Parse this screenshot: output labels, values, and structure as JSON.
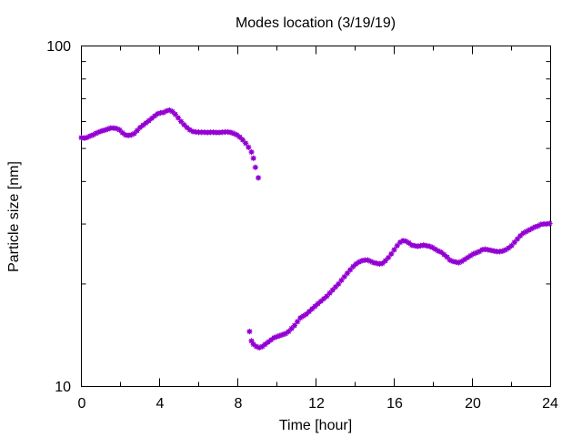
{
  "chart_data": {
    "type": "scatter",
    "title": "Modes location (3/19/19)",
    "xlabel": "Time [hour]",
    "ylabel": "Particle size [nm]",
    "x_ticks": [
      "0",
      "4",
      "8",
      "12",
      "16",
      "20",
      "24"
    ],
    "y_ticks": [
      "10",
      "100"
    ],
    "xlim": [
      0,
      24
    ],
    "ylim": [
      10,
      100
    ],
    "y_scale": "log",
    "grid": false,
    "legend": "none",
    "marker_color": "#9400d3",
    "series": [
      {
        "points": [
          [
            0.0,
            53.8
          ],
          [
            0.15,
            53.6
          ],
          [
            0.3,
            53.9
          ],
          [
            0.45,
            54.4
          ],
          [
            0.6,
            54.8
          ],
          [
            0.75,
            55.4
          ],
          [
            0.9,
            55.9
          ],
          [
            1.05,
            56.3
          ],
          [
            1.2,
            56.6
          ],
          [
            1.35,
            57.0
          ],
          [
            1.5,
            57.4
          ],
          [
            1.65,
            57.4
          ],
          [
            1.8,
            57.2
          ],
          [
            1.95,
            56.7
          ],
          [
            2.1,
            55.6
          ],
          [
            2.25,
            54.8
          ],
          [
            2.4,
            54.6
          ],
          [
            2.55,
            54.8
          ],
          [
            2.7,
            55.3
          ],
          [
            2.85,
            56.4
          ],
          [
            3.0,
            57.6
          ],
          [
            3.15,
            58.5
          ],
          [
            3.3,
            59.4
          ],
          [
            3.45,
            60.3
          ],
          [
            3.6,
            61.3
          ],
          [
            3.75,
            62.3
          ],
          [
            3.9,
            63.2
          ],
          [
            4.05,
            63.6
          ],
          [
            4.2,
            63.8
          ],
          [
            4.35,
            64.4
          ],
          [
            4.5,
            64.8
          ],
          [
            4.65,
            64.2
          ],
          [
            4.8,
            63.0
          ],
          [
            4.95,
            61.5
          ],
          [
            5.1,
            60.0
          ],
          [
            5.25,
            58.7
          ],
          [
            5.4,
            57.6
          ],
          [
            5.55,
            56.7
          ],
          [
            5.7,
            56.1
          ],
          [
            5.85,
            55.9
          ],
          [
            6.0,
            55.8
          ],
          [
            6.15,
            55.8
          ],
          [
            6.3,
            55.8
          ],
          [
            6.45,
            55.7
          ],
          [
            6.6,
            55.8
          ],
          [
            6.75,
            55.8
          ],
          [
            6.9,
            55.7
          ],
          [
            7.05,
            55.7
          ],
          [
            7.2,
            55.8
          ],
          [
            7.35,
            55.9
          ],
          [
            7.5,
            55.9
          ],
          [
            7.65,
            55.7
          ],
          [
            7.8,
            55.3
          ],
          [
            7.95,
            54.8
          ],
          [
            8.1,
            54.0
          ],
          [
            8.25,
            53.0
          ],
          [
            8.4,
            51.8
          ],
          [
            8.55,
            50.4
          ],
          [
            8.7,
            48.8
          ],
          [
            8.8,
            46.8
          ],
          [
            8.9,
            44.0
          ],
          [
            9.05,
            41.0
          ],
          [
            8.6,
            14.5
          ],
          [
            8.7,
            13.6
          ],
          [
            8.8,
            13.3
          ],
          [
            8.95,
            13.1
          ],
          [
            9.1,
            13.0
          ],
          [
            9.25,
            13.1
          ],
          [
            9.4,
            13.3
          ],
          [
            9.55,
            13.5
          ],
          [
            9.7,
            13.7
          ],
          [
            9.85,
            13.9
          ],
          [
            10.0,
            14.0
          ],
          [
            10.15,
            14.1
          ],
          [
            10.3,
            14.2
          ],
          [
            10.45,
            14.3
          ],
          [
            10.6,
            14.5
          ],
          [
            10.75,
            14.8
          ],
          [
            10.9,
            15.1
          ],
          [
            11.05,
            15.5
          ],
          [
            11.2,
            15.9
          ],
          [
            11.35,
            16.1
          ],
          [
            11.5,
            16.3
          ],
          [
            11.65,
            16.6
          ],
          [
            11.8,
            16.9
          ],
          [
            11.95,
            17.2
          ],
          [
            12.1,
            17.5
          ],
          [
            12.25,
            17.8
          ],
          [
            12.4,
            18.1
          ],
          [
            12.55,
            18.4
          ],
          [
            12.7,
            18.8
          ],
          [
            12.85,
            19.2
          ],
          [
            13.0,
            19.6
          ],
          [
            13.15,
            20.0
          ],
          [
            13.3,
            20.5
          ],
          [
            13.45,
            21.0
          ],
          [
            13.6,
            21.5
          ],
          [
            13.75,
            22.0
          ],
          [
            13.9,
            22.5
          ],
          [
            14.05,
            22.9
          ],
          [
            14.2,
            23.2
          ],
          [
            14.35,
            23.4
          ],
          [
            14.5,
            23.5
          ],
          [
            14.65,
            23.5
          ],
          [
            14.8,
            23.3
          ],
          [
            14.95,
            23.1
          ],
          [
            15.1,
            23.0
          ],
          [
            15.25,
            22.9
          ],
          [
            15.4,
            23.0
          ],
          [
            15.55,
            23.4
          ],
          [
            15.7,
            23.9
          ],
          [
            15.85,
            24.5
          ],
          [
            16.0,
            25.2
          ],
          [
            16.15,
            25.9
          ],
          [
            16.3,
            26.5
          ],
          [
            16.45,
            26.8
          ],
          [
            16.6,
            26.7
          ],
          [
            16.75,
            26.4
          ],
          [
            16.9,
            26.0
          ],
          [
            17.05,
            25.9
          ],
          [
            17.2,
            25.8
          ],
          [
            17.35,
            25.9
          ],
          [
            17.5,
            26.0
          ],
          [
            17.65,
            25.9
          ],
          [
            17.8,
            25.8
          ],
          [
            17.95,
            25.6
          ],
          [
            18.1,
            25.3
          ],
          [
            18.25,
            25.0
          ],
          [
            18.4,
            24.8
          ],
          [
            18.55,
            24.4
          ],
          [
            18.7,
            24.0
          ],
          [
            18.85,
            23.5
          ],
          [
            19.0,
            23.3
          ],
          [
            19.15,
            23.2
          ],
          [
            19.3,
            23.1
          ],
          [
            19.45,
            23.3
          ],
          [
            19.6,
            23.6
          ],
          [
            19.75,
            23.9
          ],
          [
            19.9,
            24.2
          ],
          [
            20.05,
            24.5
          ],
          [
            20.2,
            24.7
          ],
          [
            20.35,
            24.9
          ],
          [
            20.5,
            25.2
          ],
          [
            20.65,
            25.3
          ],
          [
            20.8,
            25.2
          ],
          [
            20.95,
            25.1
          ],
          [
            21.1,
            25.0
          ],
          [
            21.25,
            24.9
          ],
          [
            21.4,
            24.9
          ],
          [
            21.55,
            25.0
          ],
          [
            21.7,
            25.2
          ],
          [
            21.85,
            25.5
          ],
          [
            22.0,
            25.9
          ],
          [
            22.15,
            26.5
          ],
          [
            22.3,
            27.1
          ],
          [
            22.45,
            27.7
          ],
          [
            22.6,
            28.2
          ],
          [
            22.75,
            28.5
          ],
          [
            22.9,
            28.8
          ],
          [
            23.05,
            29.1
          ],
          [
            23.2,
            29.4
          ],
          [
            23.35,
            29.6
          ],
          [
            23.5,
            29.9
          ],
          [
            23.65,
            30.0
          ],
          [
            23.8,
            30.0
          ],
          [
            23.95,
            30.1
          ]
        ]
      }
    ]
  }
}
